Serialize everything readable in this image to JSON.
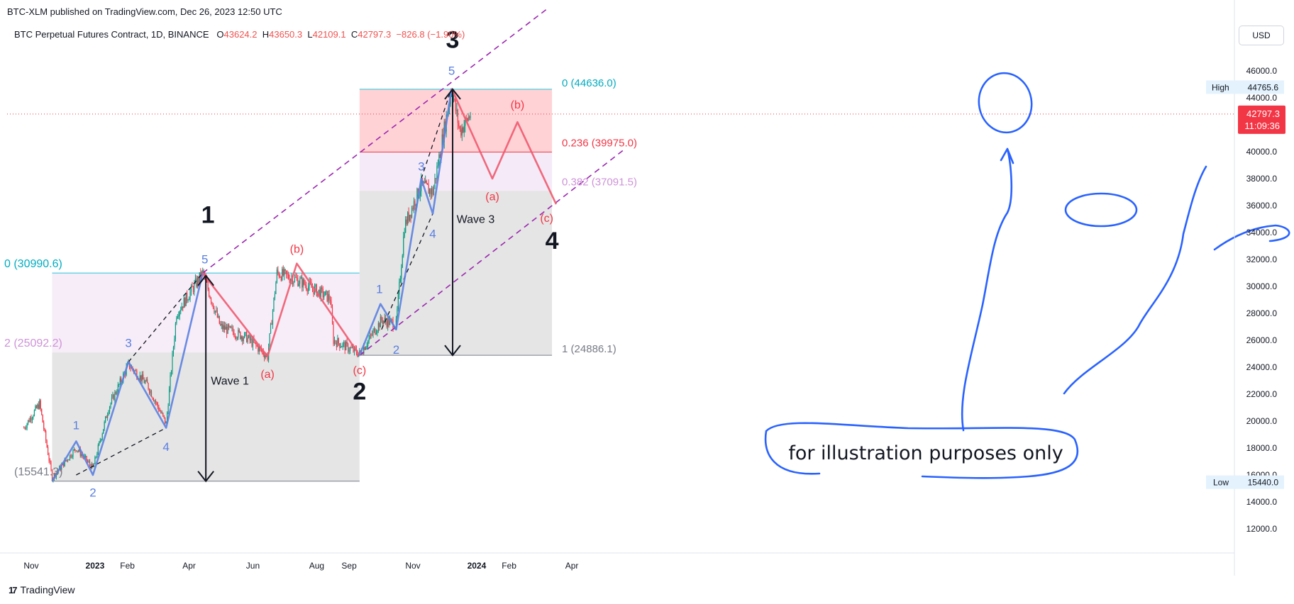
{
  "header": {
    "published": "BTC-XLM published on TradingView.com, Dec 26, 2023 12:50 UTC",
    "symbol": "BTC Perpetual Futures Contract, 1D, BINANCE",
    "open_label": "O",
    "open": "43624.2",
    "high_label": "H",
    "high": "43650.3",
    "low_label": "L",
    "low": "42109.1",
    "close_label": "C",
    "close": "42797.3",
    "change": "−826.8 (−1.90%)",
    "currency": "USD"
  },
  "footer": {
    "brand": "TradingView",
    "logo": "17"
  },
  "colors": {
    "up": "#089981",
    "down": "#f23645",
    "impulse": "#5b7fe0",
    "corrective": "#ef5a6f",
    "channel": "#9c27b0",
    "fib_line": "#26c6da",
    "annotation_blue": "#2962ff"
  },
  "price_axis": {
    "ticks": [
      "46000.0",
      "44000.0",
      "42000.0",
      "40000.0",
      "38000.0",
      "36000.0",
      "34000.0",
      "32000.0",
      "30000.0",
      "28000.0",
      "26000.0",
      "24000.0",
      "22000.0",
      "20000.0",
      "18000.0",
      "16000.0",
      "14000.0",
      "12000.0"
    ],
    "high_tag": "High",
    "high_value": "44765.6",
    "low_tag": "Low",
    "low_value": "15440.0",
    "last_price": "42797.3",
    "countdown": "11:09:36"
  },
  "time_axis": {
    "labels": [
      {
        "text": "Nov",
        "bold": false
      },
      {
        "text": "2023",
        "bold": true
      },
      {
        "text": "Feb",
        "bold": false
      },
      {
        "text": "Apr",
        "bold": false
      },
      {
        "text": "Jun",
        "bold": false
      },
      {
        "text": "Aug",
        "bold": false
      },
      {
        "text": "Sep",
        "bold": false
      },
      {
        "text": "Nov",
        "bold": false
      },
      {
        "text": "2024",
        "bold": true
      },
      {
        "text": "Feb",
        "bold": false
      },
      {
        "text": "Apr",
        "bold": false
      }
    ]
  },
  "fib_left": {
    "level_top": "0 (30990.6)",
    "level_mid": "2 (25092.2)",
    "level_low": "(15541.3)"
  },
  "fib_right": {
    "level_0": "0 (44636.0)",
    "level_236": "0.236 (39975.0)",
    "level_382": "0.382 (37091.5)",
    "level_1": "1 (24886.1)"
  },
  "waves": {
    "major": [
      "1",
      "2",
      "3",
      "4"
    ],
    "minor_impulse_1": [
      "1",
      "2",
      "3",
      "4",
      "5"
    ],
    "minor_impulse_3": [
      "1",
      "2",
      "3",
      "4",
      "5"
    ],
    "corrective_2": [
      "(a)",
      "(b)",
      "(c)"
    ],
    "corrective_4": [
      "(a)",
      "(b)",
      "(c)"
    ],
    "wave1_label": "Wave 1",
    "wave3_label": "Wave 3"
  },
  "annotation": "for illustration purposes only",
  "chart_data": {
    "type": "candlestick",
    "title": "BTC Perpetual Futures Contract, 1D, BINANCE",
    "ylim": [
      11000,
      47500
    ],
    "x_range": [
      "2022-10-25",
      "2024-05-20"
    ],
    "grid": false,
    "candles_anchor_dates": [
      "2022-10-25",
      "2022-11-09",
      "2022-11-21",
      "2022-12-14",
      "2022-12-30",
      "2023-01-14",
      "2023-02-02",
      "2023-02-20",
      "2023-03-10",
      "2023-03-20",
      "2023-04-14",
      "2023-05-01",
      "2023-05-26",
      "2023-06-15",
      "2023-06-24",
      "2023-07-13",
      "2023-08-14",
      "2023-08-17",
      "2023-09-11",
      "2023-10-02",
      "2023-10-16",
      "2023-10-24",
      "2023-11-09",
      "2023-11-20",
      "2023-12-08",
      "2023-12-16",
      "2023-12-26"
    ],
    "candles_anchor_prices": [
      19500,
      21300,
      15800,
      18000,
      16500,
      21000,
      24200,
      22700,
      19800,
      28000,
      30990,
      27000,
      26200,
      24800,
      31000,
      30500,
      29100,
      26000,
      25000,
      27500,
      27200,
      34500,
      37500,
      37000,
      44700,
      41500,
      42797
    ]
  }
}
